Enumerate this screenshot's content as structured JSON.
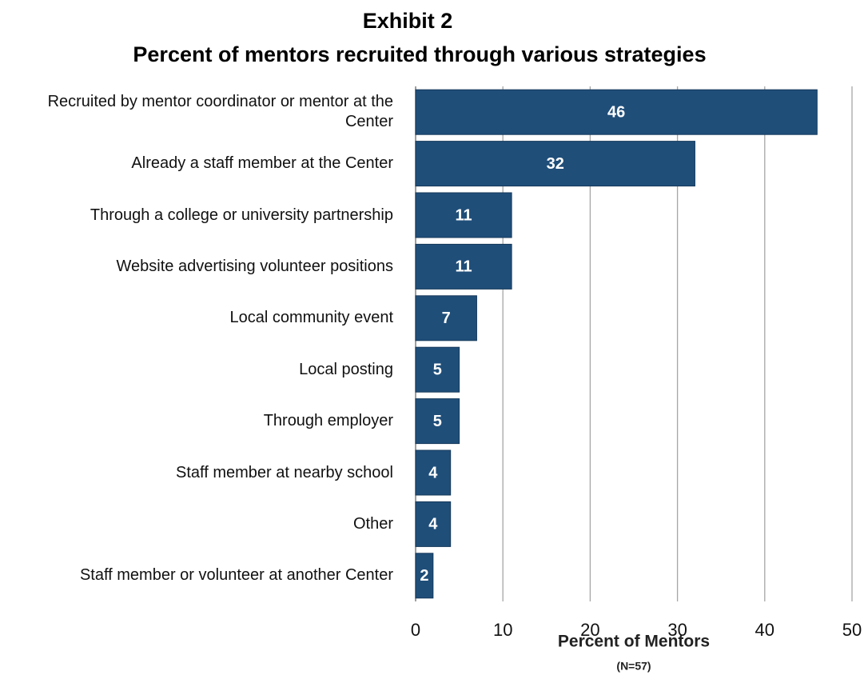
{
  "chart_data": {
    "type": "bar",
    "orientation": "horizontal",
    "title": "Exhibit 2",
    "subtitle": "Percent of mentors recruited through various strategies",
    "x_label": "Percent of Mentors",
    "x_label_note": "(N=57)",
    "categories": [
      "Recruited by mentor coordinator or mentor at the Center",
      "Already a staff member at the Center",
      "Through a college or university partnership",
      "Website advertising volunteer positions",
      "Local community event",
      "Local posting",
      "Through employer",
      "Staff member at nearby school",
      "Other",
      "Staff member or volunteer at another Center"
    ],
    "values": [
      46,
      32,
      11,
      11,
      7,
      5,
      5,
      4,
      4,
      2
    ],
    "color": "#1f4e79",
    "xlim": [
      0,
      50
    ],
    "xticks": [
      0,
      10,
      20,
      30,
      40,
      50
    ],
    "grid": true
  }
}
